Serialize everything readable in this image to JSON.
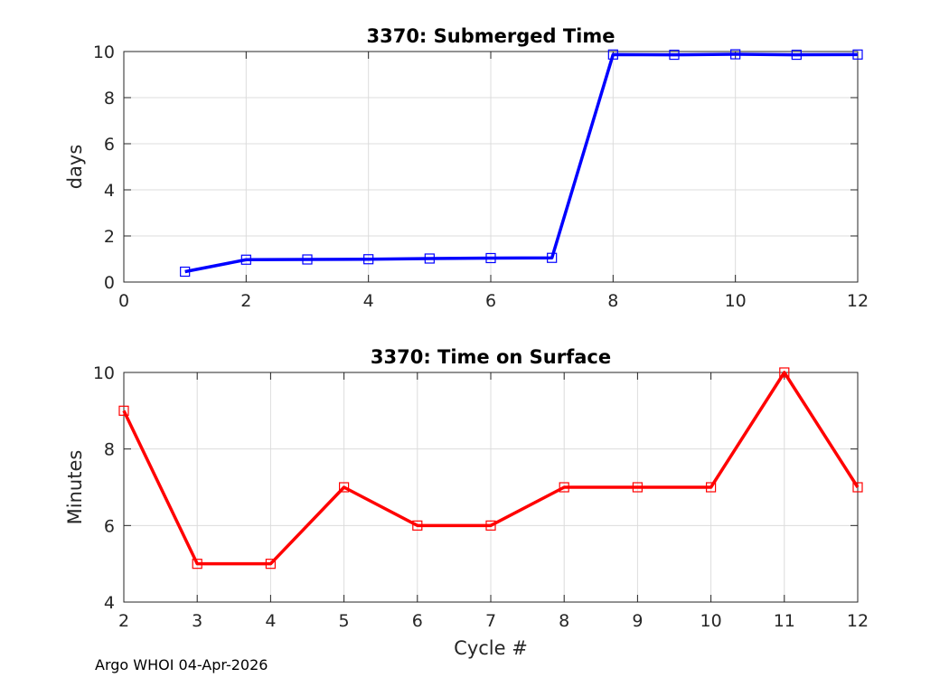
{
  "chart_data": [
    {
      "type": "line",
      "title": "3370: Submerged Time",
      "xlabel": "",
      "ylabel": "days",
      "xlim": [
        0,
        12
      ],
      "ylim": [
        0,
        10
      ],
      "xticks": [
        0,
        2,
        4,
        6,
        8,
        10,
        12
      ],
      "yticks": [
        0,
        2,
        4,
        6,
        8,
        10
      ],
      "grid": true,
      "marker": "square",
      "series": [
        {
          "color": "#0000ff",
          "x": [
            1,
            2,
            3,
            4,
            5,
            6,
            7,
            8,
            9,
            10,
            11,
            12
          ],
          "y": [
            0.45,
            0.97,
            0.98,
            0.99,
            1.02,
            1.04,
            1.05,
            9.87,
            9.86,
            9.88,
            9.86,
            9.87
          ]
        }
      ]
    },
    {
      "type": "line",
      "title": "3370: Time on Surface",
      "xlabel": "Cycle #",
      "ylabel": "Minutes",
      "xlim": [
        2,
        12
      ],
      "ylim": [
        4,
        10
      ],
      "xticks": [
        2,
        3,
        4,
        5,
        6,
        7,
        8,
        9,
        10,
        11,
        12
      ],
      "yticks": [
        4,
        6,
        8,
        10
      ],
      "grid": true,
      "marker": "square",
      "series": [
        {
          "color": "#ff0000",
          "x": [
            2,
            3,
            4,
            5,
            6,
            7,
            8,
            9,
            10,
            11,
            12
          ],
          "y": [
            9,
            5,
            5,
            7,
            6,
            6,
            7,
            7,
            7,
            10,
            7
          ]
        }
      ]
    }
  ],
  "footer": "Argo WHOI 04-Apr-2026"
}
